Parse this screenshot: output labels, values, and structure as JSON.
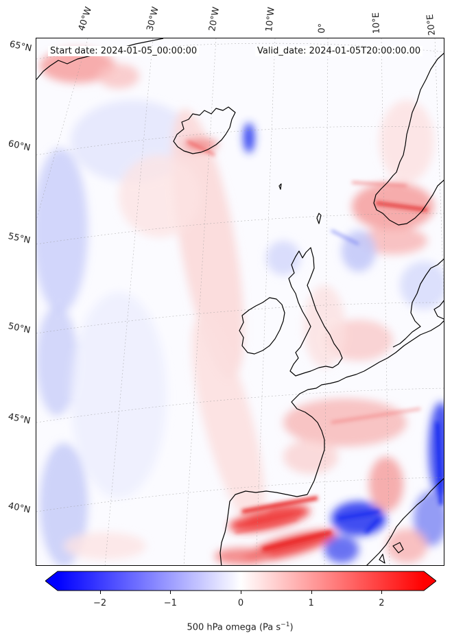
{
  "header": {
    "start_date": "Start date: 2024-01-05_00:00:00",
    "valid_date": "Valid_date: 2024-01-05T20:00:00.00"
  },
  "longitude_labels": [
    "40°W",
    "30°W",
    "20°W",
    "10°W",
    "0°",
    "10°E",
    "20°E"
  ],
  "latitude_labels": [
    "65°N",
    "60°N",
    "55°N",
    "50°N",
    "45°N",
    "40°N"
  ],
  "colorbar": {
    "title_prefix": "500 hPa omega (Pa s",
    "title_exp": "−1",
    "title_suffix": ")",
    "ticks": [
      "−2",
      "−1",
      "0",
      "1",
      "2"
    ],
    "min": -2.6,
    "max": 2.6,
    "neg_color": "#0000ff",
    "zero_color": "#ffffff",
    "pos_color": "#ff0000"
  },
  "colors": {
    "coastline": "#000000",
    "gridline": "#999999",
    "background": "#fbfbff"
  }
}
